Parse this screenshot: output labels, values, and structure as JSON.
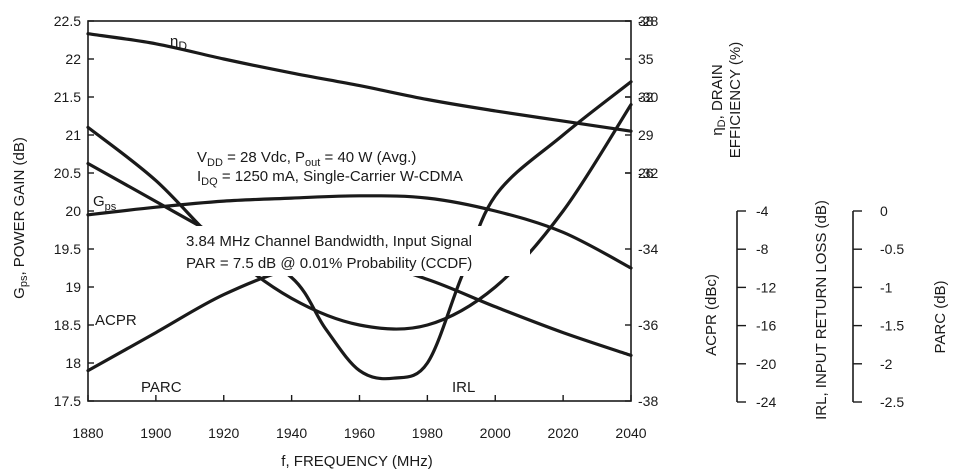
{
  "chart_data": {
    "type": "line",
    "xlabel": "f, FREQUENCY (MHz)",
    "x_ticks": [
      1880,
      1900,
      1920,
      1940,
      1960,
      1980,
      2000,
      2020,
      2040
    ],
    "xlim": [
      1880,
      2040
    ],
    "grid": false,
    "axes": {
      "gain": {
        "label_main": "G",
        "label_sub": "ps",
        "label_rest": ", POWER GAIN (dB)",
        "range": [
          17.5,
          22.5
        ],
        "ticks": [
          "17.5",
          "18",
          "18.5",
          "19",
          "19.5",
          "20",
          "20.5",
          "21",
          "21.5",
          "22",
          "22.5"
        ]
      },
      "efficiency": {
        "label_line1_main": "η",
        "label_line1_sub": "D",
        "label_line1_rest": ", DRAIN",
        "label_line2": "EFFICIENCY (%)",
        "range": [
          26,
          38
        ],
        "ticks": [
          "26",
          "29",
          "32",
          "35",
          "38"
        ]
      },
      "acpr": {
        "label": "ACPR (dBc)",
        "range": [
          -38,
          -28
        ],
        "ticks": [
          "-38",
          "-36",
          "-34",
          "-32",
          "-30",
          "-28"
        ]
      },
      "irl": {
        "label": "IRL, INPUT RETURN LOSS (dB)",
        "range": [
          -24,
          -4
        ],
        "ticks": [
          "-24",
          "-20",
          "-16",
          "-12",
          "-8",
          "-4"
        ]
      },
      "parc": {
        "label": "PARC (dB)",
        "range": [
          -2.5,
          0
        ],
        "ticks": [
          "-2.5",
          "-2",
          "-1.5",
          "-1",
          "-0.5",
          "0"
        ]
      }
    },
    "series": [
      {
        "name_main": "η",
        "name_sub": "D",
        "axis": "efficiency",
        "x": [
          1880,
          1900,
          1920,
          1940,
          1960,
          1980,
          2000,
          2020,
          2040
        ],
        "y": [
          37.0,
          36.2,
          35.0,
          33.9,
          32.9,
          31.8,
          30.9,
          30.1,
          29.3
        ]
      },
      {
        "name_main": "G",
        "name_sub": "ps",
        "axis": "gain",
        "x": [
          1880,
          1900,
          1920,
          1940,
          1960,
          1980,
          2000,
          2020,
          2040
        ],
        "y": [
          19.95,
          20.05,
          20.13,
          20.17,
          20.2,
          20.17,
          20.0,
          19.72,
          19.25
        ]
      },
      {
        "name": "ACPR",
        "axis": "acpr",
        "x": [
          1880,
          1900,
          1920,
          1940,
          1960,
          1980,
          2000,
          2020,
          2040
        ],
        "y": [
          -30.8,
          -32.2,
          -34.0,
          -35.3,
          -36.0,
          -36.0,
          -35.0,
          -33.0,
          -30.2
        ]
      },
      {
        "name": "IRL",
        "axis": "irl",
        "x": [
          1880,
          1900,
          1920,
          1940,
          1950,
          1960,
          1970,
          1980,
          1990,
          2000,
          2020,
          2040
        ],
        "y": [
          -11.5,
          -13.5,
          -15.5,
          -17.5,
          -20.2,
          -22.4,
          -22.8,
          -22.0,
          -17.5,
          -13.2,
          -10.0,
          -7.2
        ]
      },
      {
        "name": "PARC",
        "axis": "parc",
        "x": [
          1880,
          1900,
          1920,
          1940,
          1960,
          1980,
          2000,
          2020,
          2040
        ],
        "y": [
          -2.3,
          -2.05,
          -1.8,
          -1.63,
          -1.58,
          -1.7,
          -1.88,
          -2.05,
          -2.2
        ]
      }
    ],
    "annotations": {
      "cond1_v": "V",
      "cond1_v_sub": "DD",
      "cond1_mid": " = 28 Vdc, P",
      "cond1_p_sub": "out",
      "cond1_end": " = 40 W (Avg.)",
      "cond2_i": "I",
      "cond2_i_sub": "DQ",
      "cond2_end": " = 1250 mA, Single-Carrier W-CDMA",
      "cond3": "3.84 MHz Channel Bandwidth, Input Signal",
      "cond4": "PAR = 7.5 dB @ 0.01% Probability (CCDF)"
    }
  }
}
